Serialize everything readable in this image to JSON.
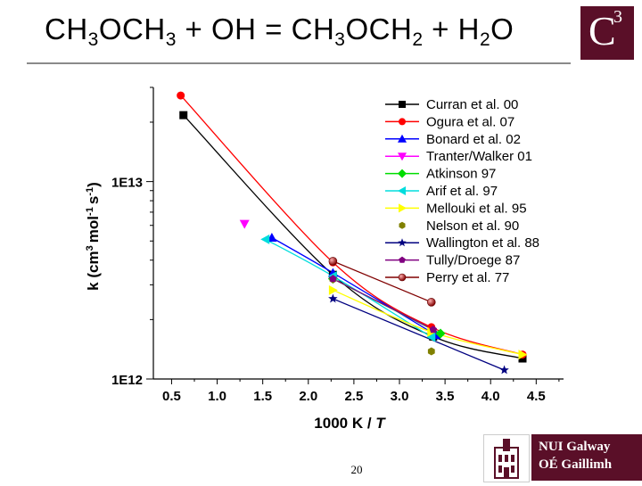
{
  "slide": {
    "title_parts": [
      {
        "t": "CH",
        "sub": false
      },
      {
        "t": "3",
        "sub": true
      },
      {
        "t": "OCH",
        "sub": false
      },
      {
        "t": "3",
        "sub": true
      },
      {
        "t": " + OH = CH",
        "sub": false
      },
      {
        "t": "3",
        "sub": true
      },
      {
        "t": "OCH",
        "sub": false
      },
      {
        "t": "2",
        "sub": true
      },
      {
        "t": " + H",
        "sub": false
      },
      {
        "t": "2",
        "sub": true
      },
      {
        "t": "O",
        "sub": false
      }
    ],
    "page_number": "20",
    "logo_c": "C",
    "logo_sup": "3",
    "university_line1": "NUI Galway",
    "university_line2": "OÉ Gaillimh"
  },
  "colors": {
    "brand": "#5a0f28",
    "rule": "#8a8a8a"
  },
  "chart_data": {
    "type": "scatter",
    "xlabel_prefix": "1000 K / ",
    "xlabel_var": "T",
    "ylabel_parts": [
      "k",
      "(",
      "cm",
      "3",
      "mol",
      "-1",
      "s",
      "-1",
      ")"
    ],
    "xlim": [
      0.3,
      4.8
    ],
    "xticks": [
      "0.5",
      "1.0",
      "1.5",
      "2.0",
      "2.5",
      "3.0",
      "3.5",
      "4.0",
      "4.5"
    ],
    "ylim": [
      1000000000000.0,
      30000000000000.0
    ],
    "yscale": "log",
    "yticks": [
      {
        "value": 1000000000000.0,
        "label": "1E12"
      },
      {
        "value": 10000000000000.0,
        "label": "1E13"
      }
    ],
    "legend_position": "top-right",
    "series": [
      {
        "name": "Curran et al. 00",
        "color": "#000000",
        "marker": "square",
        "line": true,
        "points": [
          [
            0.63,
            21700000000000.0
          ],
          [
            2.27,
            3370000000000.0
          ],
          [
            3.37,
            1640000000000.0
          ],
          [
            4.35,
            1270000000000.0
          ]
        ]
      },
      {
        "name": "Ogura et al. 07",
        "color": "#ff0000",
        "marker": "circle",
        "line": true,
        "points": [
          [
            0.6,
            27300000000000.0
          ],
          [
            2.27,
            3900000000000.0
          ],
          [
            3.35,
            1830000000000.0
          ],
          [
            4.35,
            1330000000000.0
          ]
        ]
      },
      {
        "name": "Bonard et al. 02",
        "color": "#0000ff",
        "marker": "triangle-up",
        "line": true,
        "points": [
          [
            1.6,
            5200000000000.0
          ],
          [
            2.27,
            3450000000000.0
          ],
          [
            3.4,
            1670000000000.0
          ]
        ]
      },
      {
        "name": "Tranter/Walker 01",
        "color": "#ff00ff",
        "marker": "triangle-down",
        "line": true,
        "points": [
          [
            1.3,
            6100000000000.0
          ]
        ]
      },
      {
        "name": "Atkinson 97",
        "color": "#00dd00",
        "marker": "diamond",
        "line": true,
        "points": [
          [
            2.27,
            3220000000000.0
          ],
          [
            3.45,
            1700000000000.0
          ]
        ]
      },
      {
        "name": "Arif et al. 97",
        "color": "#00dddd",
        "marker": "triangle-left",
        "line": true,
        "points": [
          [
            1.53,
            5100000000000.0
          ],
          [
            2.27,
            3320000000000.0
          ],
          [
            3.35,
            1630000000000.0
          ]
        ]
      },
      {
        "name": "Mellouki et al. 95",
        "color": "#ffff00",
        "marker": "triangle-right",
        "line": true,
        "points": [
          [
            2.27,
            2820000000000.0
          ],
          [
            3.35,
            1730000000000.0
          ],
          [
            4.35,
            1330000000000.0
          ]
        ]
      },
      {
        "name": "Nelson et al. 90",
        "color": "#808000",
        "marker": "hexagon",
        "line": false,
        "points": [
          [
            2.27,
            3200000000000.0
          ],
          [
            3.35,
            1380000000000.0
          ]
        ]
      },
      {
        "name": "Wallington et al. 88",
        "color": "#000080",
        "marker": "star",
        "line": true,
        "points": [
          [
            2.27,
            2550000000000.0
          ],
          [
            4.15,
            1110000000000.0
          ]
        ]
      },
      {
        "name": "Tully/Droege 87",
        "color": "#800080",
        "marker": "pentagon",
        "line": true,
        "points": [
          [
            2.27,
            3220000000000.0
          ],
          [
            3.37,
            1780000000000.0
          ]
        ]
      },
      {
        "name": "Perry et al. 77",
        "color": "#800000",
        "marker": "sphere",
        "line": true,
        "points": [
          [
            2.27,
            3950000000000.0
          ],
          [
            3.35,
            2450000000000.0
          ]
        ]
      }
    ]
  }
}
